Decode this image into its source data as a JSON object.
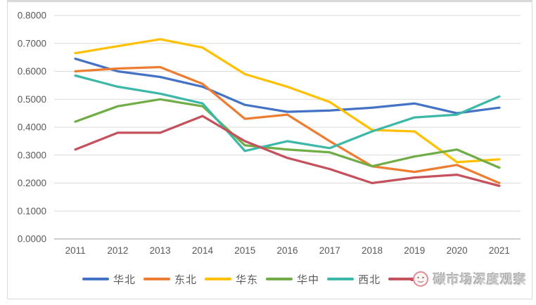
{
  "watermark": {
    "text": "碳市场深度观察"
  },
  "chart_data": {
    "type": "line",
    "x": [
      "2011",
      "2012",
      "2013",
      "2014",
      "2015",
      "2016",
      "2017",
      "2018",
      "2019",
      "2020",
      "2021"
    ],
    "y_tick_labels": [
      "0.0000",
      "0.1000",
      "0.2000",
      "0.3000",
      "0.4000",
      "0.5000",
      "0.6000",
      "0.7000",
      "0.8000"
    ],
    "ylim": [
      0,
      0.8
    ],
    "ytick_step": 0.1,
    "grid": "horizontal",
    "legend_position": "bottom",
    "title": "",
    "xlabel": "",
    "ylabel": "",
    "series": [
      {
        "name": "华北",
        "color": "#4472C4",
        "values": [
          0.645,
          0.6,
          0.58,
          0.545,
          0.48,
          0.455,
          0.46,
          0.47,
          0.485,
          0.45,
          0.47
        ]
      },
      {
        "name": "东北",
        "color": "#ED7D31",
        "values": [
          0.6,
          0.61,
          0.615,
          0.555,
          0.43,
          0.445,
          0.35,
          0.26,
          0.24,
          0.265,
          0.2
        ]
      },
      {
        "name": "华东",
        "color": "#FFC000",
        "values": [
          0.665,
          0.69,
          0.715,
          0.685,
          0.59,
          0.545,
          0.49,
          0.39,
          0.385,
          0.275,
          0.285
        ]
      },
      {
        "name": "华中",
        "color": "#70AD47",
        "values": [
          0.42,
          0.475,
          0.5,
          0.475,
          0.335,
          0.32,
          0.31,
          0.26,
          0.295,
          0.32,
          0.255
        ]
      },
      {
        "name": "西北",
        "color": "#3CB8A8",
        "values": [
          0.585,
          0.545,
          0.52,
          0.485,
          0.315,
          0.35,
          0.325,
          0.385,
          0.435,
          0.445,
          0.51
        ]
      },
      {
        "name": "",
        "label_hidden_by_watermark": true,
        "color": "#C4515C",
        "values": [
          0.32,
          0.38,
          0.38,
          0.44,
          0.35,
          0.29,
          0.25,
          0.2,
          0.22,
          0.23,
          0.19
        ]
      }
    ],
    "style": {
      "gridline_color": "#D9D9D9",
      "axis_line_color": "#BFBFBF",
      "tick_label_color": "#595959",
      "line_width": 3.25
    }
  }
}
